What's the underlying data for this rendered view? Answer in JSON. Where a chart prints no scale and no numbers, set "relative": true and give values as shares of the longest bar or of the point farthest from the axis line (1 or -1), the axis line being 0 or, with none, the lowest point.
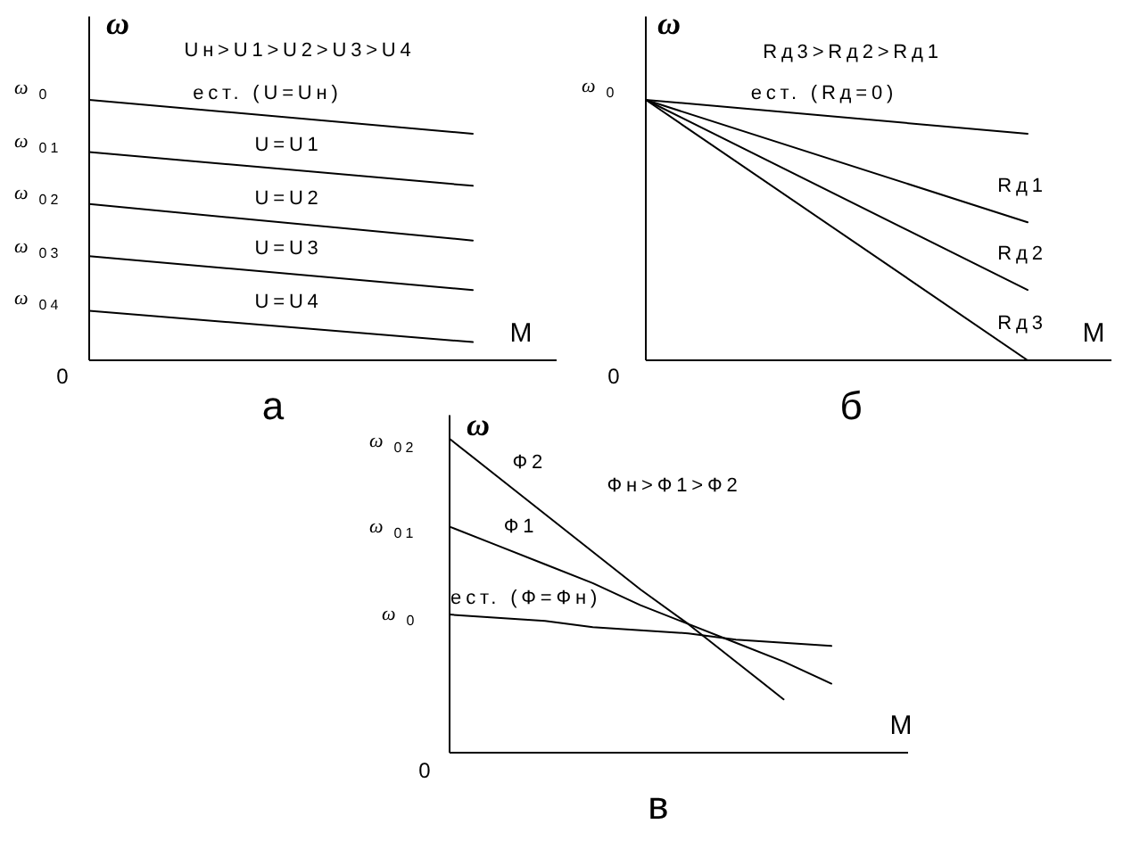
{
  "chart_data": [
    {
      "type": "line",
      "title": "а",
      "xlabel": "M",
      "ylabel": "ω",
      "relative": true,
      "annotations": [
        "Uн>U1>U2>U3>U4",
        "ω$_{0}$",
        "ω$_{01}$",
        "ω$_{02}$",
        "ω$_{03}$",
        "ω$_{04}$",
        "0"
      ],
      "categories": [
        null,
        null
      ],
      "series": [
        {
          "name": "ест. (U=Uн)",
          "color": "#000000",
          "values": [
            1,
            0.87
          ]
        },
        {
          "name": "U=U1",
          "color": "#000000",
          "values": [
            0.8,
            0.67
          ]
        },
        {
          "name": "U=U2",
          "color": "#000000",
          "values": [
            0.6,
            0.46
          ]
        },
        {
          "name": "U=U3",
          "color": "#000000",
          "values": [
            0.4,
            0.27
          ]
        },
        {
          "name": "U=U4",
          "color": "#000000",
          "values": [
            0.19,
            0.07
          ]
        }
      ]
    },
    {
      "type": "line",
      "title": "б",
      "xlabel": "M",
      "ylabel": "ω",
      "relative": true,
      "annotations": [
        "Rд3>Rд2>Rд1",
        "ω$_{0}$",
        "0"
      ],
      "categories": [
        null,
        null
      ],
      "series": [
        {
          "name": "ест. (Rд=0)",
          "color": "#000000",
          "values": [
            1,
            0.87
          ]
        },
        {
          "name": "Rд1",
          "color": "#000000",
          "values": [
            1,
            0.53
          ]
        },
        {
          "name": "Rд2",
          "color": "#000000",
          "values": [
            1,
            0.27
          ]
        },
        {
          "name": "Rд3",
          "color": "#000000",
          "values": [
            1,
            0
          ]
        }
      ]
    },
    {
      "type": "line",
      "title": "в",
      "xlabel": "M",
      "ylabel": "ω",
      "relative": true,
      "annotations": [
        "Фн>Ф1>Ф2",
        "ω$_{02}$",
        "ω$_{01}$",
        "ω$_{0}$",
        "0"
      ],
      "categories": [
        null,
        null,
        null,
        null,
        null,
        null,
        null,
        null,
        null
      ],
      "series": [
        {
          "name": "ест. (Ф=Фн)",
          "color": "#000000",
          "values": [
            0.44,
            0.43,
            0.42,
            0.4,
            0.39,
            0.38,
            0.36,
            0.35,
            0.34
          ]
        },
        {
          "name": "Ф1",
          "color": "#000000",
          "values": [
            0.72,
            0.66,
            0.6,
            0.54,
            0.47,
            0.41,
            0.35,
            0.29,
            0.22
          ]
        },
        {
          "name": "Ф2",
          "color": "#000000",
          "values": [
            1,
            0.88,
            0.76,
            0.64,
            0.52,
            0.41,
            0.29,
            0.17,
            null
          ]
        }
      ]
    }
  ]
}
